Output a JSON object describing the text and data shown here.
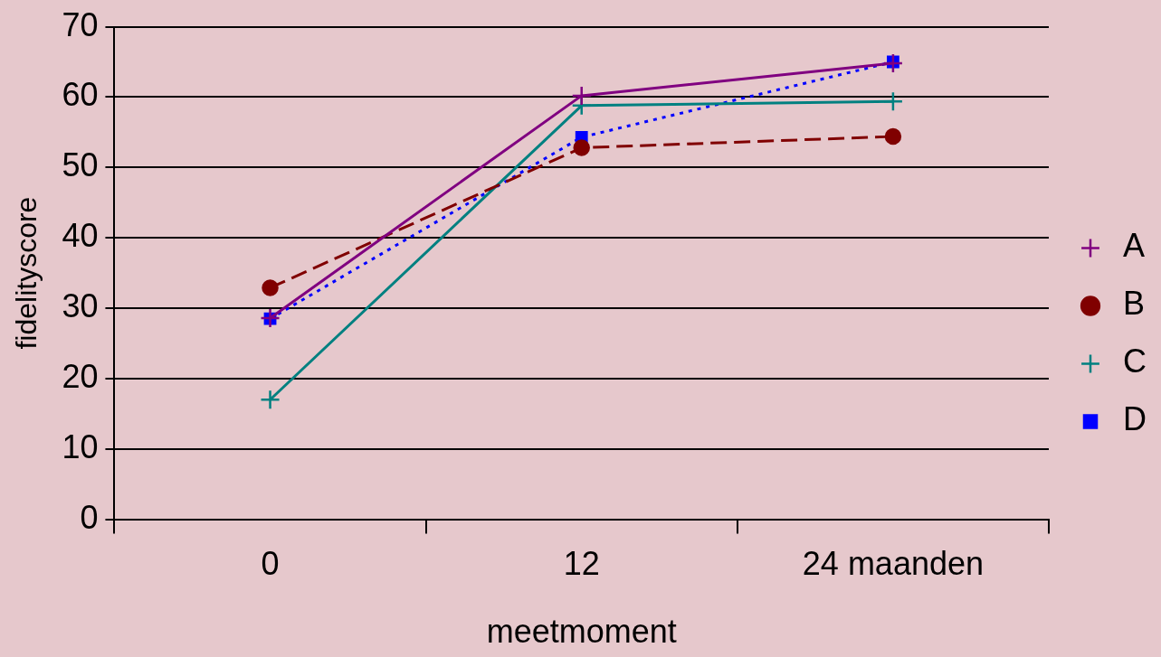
{
  "chart_data": {
    "type": "line",
    "xlabel": "meetmoment",
    "ylabel": "fidelityscore",
    "categories": [
      "0",
      "12",
      "24 maanden"
    ],
    "ylim": [
      0,
      70
    ],
    "yticks": [
      0,
      10,
      20,
      30,
      40,
      50,
      60,
      70
    ],
    "grid": "y",
    "legend": "right",
    "series": [
      {
        "name": "A",
        "color": "#800080",
        "values": [
          28.6,
          60.2,
          64.8
        ],
        "marker": "cross",
        "line_style": "solid"
      },
      {
        "name": "B",
        "color": "#800000",
        "values": [
          32.9,
          52.8,
          54.4
        ],
        "marker": "circle",
        "line_style": "dashed"
      },
      {
        "name": "C",
        "color": "#008080",
        "values": [
          17,
          58.8,
          59.4
        ],
        "marker": "cross",
        "line_style": "solid"
      },
      {
        "name": "D",
        "color": "#0000ff",
        "values": [
          28.5,
          54.3,
          65
        ],
        "marker": "square",
        "line_style": "dotted"
      }
    ]
  }
}
